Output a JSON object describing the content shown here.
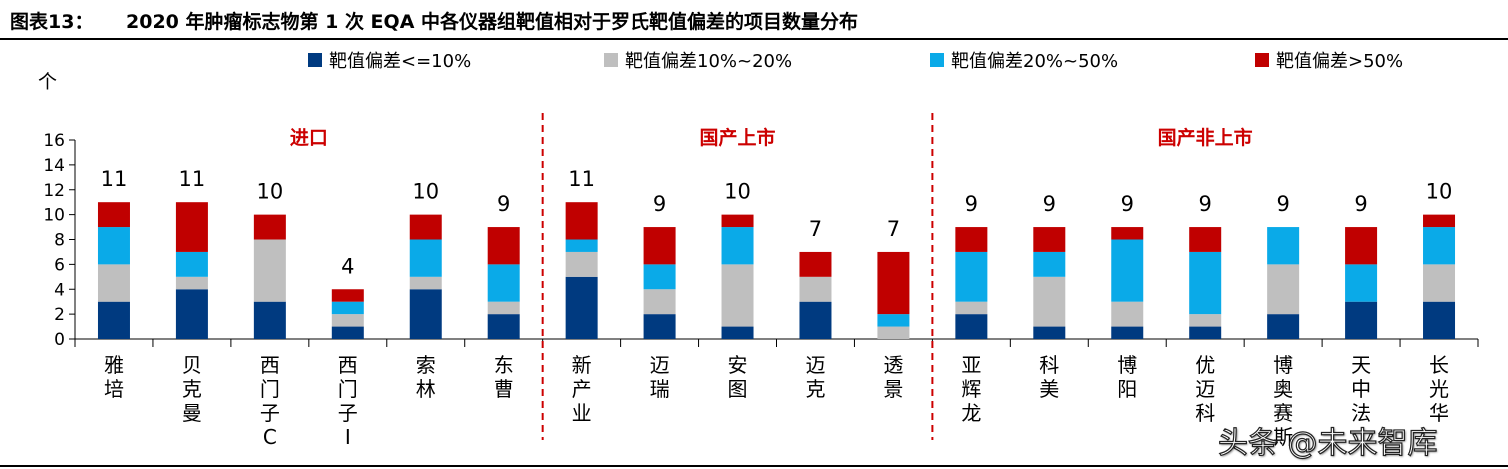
{
  "figure": {
    "label": "图表13：",
    "title": "2020 年肿瘤标志物第 1 次 EQA 中各仪器组靶值相对于罗氏靶值偏差的项目数量分布"
  },
  "watermark": "头条 @未来智库",
  "chart_data": {
    "type": "bar",
    "stacked": true,
    "unit_label": "个",
    "ylim": [
      0,
      16
    ],
    "yticks": [
      0,
      2,
      4,
      6,
      8,
      10,
      12,
      14,
      16
    ],
    "grid": false,
    "legend_position": "top",
    "colors": {
      "le10": "#003a80",
      "10to20": "#bfbfbf",
      "20to50": "#0aaae8",
      "gt50": "#c00000",
      "group_label": "#cc0000",
      "divider": "#cc0000"
    },
    "series": [
      {
        "key": "le10",
        "name": "靶值偏差<=10%",
        "values": [
          3,
          4,
          3,
          1,
          4,
          2,
          5,
          2,
          1,
          3,
          0,
          2,
          1,
          1,
          1,
          2,
          3,
          3
        ]
      },
      {
        "key": "10to20",
        "name": "靶值偏差10%~20%",
        "values": [
          3,
          1,
          5,
          1,
          1,
          1,
          2,
          2,
          5,
          2,
          1,
          1,
          4,
          2,
          1,
          4,
          0,
          3
        ]
      },
      {
        "key": "20to50",
        "name": "靶值偏差20%~50%",
        "values": [
          3,
          2,
          0,
          1,
          3,
          3,
          1,
          2,
          3,
          0,
          1,
          4,
          2,
          5,
          5,
          3,
          3,
          3
        ]
      },
      {
        "key": "gt50",
        "name": "靶值偏差>50%",
        "values": [
          2,
          4,
          2,
          1,
          2,
          3,
          3,
          3,
          1,
          2,
          5,
          2,
          2,
          1,
          2,
          0,
          3,
          1
        ]
      }
    ],
    "categories": [
      {
        "label": "雅培",
        "lines": [
          "雅",
          "培"
        ]
      },
      {
        "label": "贝克曼",
        "lines": [
          "贝",
          "克",
          "曼"
        ]
      },
      {
        "label": "西门子C",
        "lines": [
          "西",
          "门",
          "子",
          "C"
        ]
      },
      {
        "label": "西门子I",
        "lines": [
          "西",
          "门",
          "子",
          "I"
        ]
      },
      {
        "label": "索林",
        "lines": [
          "索",
          "林"
        ]
      },
      {
        "label": "东曹",
        "lines": [
          "东",
          "曹"
        ]
      },
      {
        "label": "新产业",
        "lines": [
          "新",
          "产",
          "业"
        ]
      },
      {
        "label": "迈瑞",
        "lines": [
          "迈",
          "瑞"
        ]
      },
      {
        "label": "安图",
        "lines": [
          "安",
          "图"
        ]
      },
      {
        "label": "迈克",
        "lines": [
          "迈",
          "克"
        ]
      },
      {
        "label": "透景",
        "lines": [
          "透",
          "景"
        ]
      },
      {
        "label": "亚辉龙",
        "lines": [
          "亚",
          "辉",
          "龙"
        ]
      },
      {
        "label": "科美",
        "lines": [
          "科",
          "美"
        ]
      },
      {
        "label": "博阳",
        "lines": [
          "博",
          "阳"
        ]
      },
      {
        "label": "优迈科",
        "lines": [
          "优",
          "迈",
          "科"
        ]
      },
      {
        "label": "博奥赛斯",
        "lines": [
          "博",
          "奥",
          "赛",
          "斯"
        ]
      },
      {
        "label": "天中法",
        "lines": [
          "天",
          "中",
          "法"
        ]
      },
      {
        "label": "长光华",
        "lines": [
          "长",
          "光",
          "华"
        ]
      }
    ],
    "totals": [
      "11",
      "11",
      "10",
      "4",
      "10",
      "9",
      "11",
      "9",
      "10",
      "7",
      "7",
      "9",
      "9",
      "9",
      "9",
      "9",
      "9",
      "10"
    ],
    "groups": [
      {
        "label": "进口",
        "start": 0,
        "end": 5
      },
      {
        "label": "国产上市",
        "start": 6,
        "end": 10
      },
      {
        "label": "国产非上市",
        "start": 11,
        "end": 17
      }
    ]
  }
}
